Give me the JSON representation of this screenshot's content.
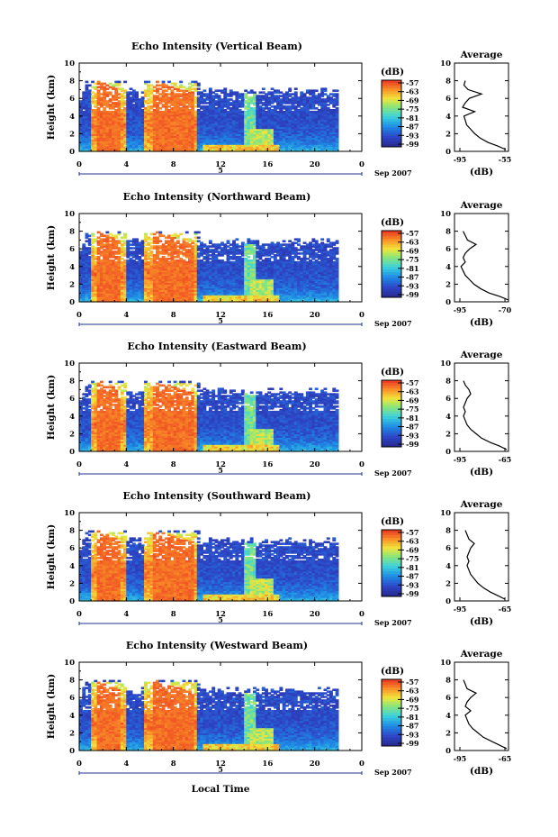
{
  "figure": {
    "xlabel": "Local Time",
    "date_label": "Sep 2007",
    "day_marker": "5",
    "cbar_unit": "(dB)",
    "avg_title": "Average",
    "avg_xlabel": "(dB)"
  },
  "chart_data": [
    {
      "type": "heatmap",
      "title": "Echo Intensity (Vertical Beam)",
      "ylabel": "Height (km)",
      "xlabel": "Local Time",
      "x_ticks": [
        "0",
        "4",
        "8",
        "12",
        "16",
        "20",
        "0"
      ],
      "y_ticks": [
        "0",
        "2",
        "4",
        "6",
        "8",
        "10"
      ],
      "xlim": [
        0,
        24
      ],
      "ylim": [
        0,
        10
      ],
      "colorbar_ticks": [
        "-57",
        "-63",
        "-69",
        "-75",
        "-81",
        "-87",
        "-93",
        "-99"
      ],
      "average": {
        "x_ticks": [
          "-95",
          "-55"
        ],
        "xlim": [
          -95,
          -55
        ],
        "heights": [
          0.2,
          0.6,
          1.0,
          1.5,
          2.0,
          2.5,
          3.0,
          3.5,
          4.0,
          4.5,
          5.0,
          5.5,
          6.0,
          6.5,
          7.0,
          7.5,
          8.0
        ],
        "values": [
          -57,
          -63,
          -70,
          -76,
          -80,
          -83,
          -86,
          -87,
          -88,
          -80,
          -89,
          -87,
          -84,
          -75,
          -85,
          -88,
          -87
        ]
      }
    },
    {
      "type": "heatmap",
      "title": "Echo Intensity (Northward Beam)",
      "ylabel": "Height (km)",
      "xlabel": "Local Time",
      "x_ticks": [
        "0",
        "4",
        "8",
        "12",
        "16",
        "20",
        "0"
      ],
      "y_ticks": [
        "0",
        "2",
        "4",
        "6",
        "8",
        "10"
      ],
      "xlim": [
        0,
        24
      ],
      "ylim": [
        0,
        10
      ],
      "colorbar_ticks": [
        "-57",
        "-63",
        "-69",
        "-75",
        "-81",
        "-87",
        "-93",
        "-99"
      ],
      "average": {
        "x_ticks": [
          "-95",
          "-70"
        ],
        "xlim": [
          -95,
          -70
        ],
        "heights": [
          0.2,
          0.6,
          1.0,
          1.5,
          2.0,
          2.5,
          3.0,
          3.5,
          4.0,
          4.5,
          5.0,
          5.5,
          6.0,
          6.5,
          7.0,
          7.5,
          8.0
        ],
        "values": [
          -70,
          -74,
          -79,
          -83,
          -86,
          -88,
          -90,
          -91,
          -92,
          -90,
          -91,
          -90,
          -88,
          -85,
          -89,
          -90,
          -91
        ]
      }
    },
    {
      "type": "heatmap",
      "title": "Echo Intensity (Eastward Beam)",
      "ylabel": "Height (km)",
      "xlabel": "Local Time",
      "x_ticks": [
        "0",
        "4",
        "8",
        "12",
        "16",
        "20",
        "0"
      ],
      "y_ticks": [
        "0",
        "2",
        "4",
        "6",
        "8",
        "10"
      ],
      "xlim": [
        0,
        24
      ],
      "ylim": [
        0,
        10
      ],
      "colorbar_ticks": [
        "-57",
        "-63",
        "-69",
        "-75",
        "-81",
        "-87",
        "-93",
        "-99"
      ],
      "average": {
        "x_ticks": [
          "-95",
          "-65"
        ],
        "xlim": [
          -95,
          -65
        ],
        "heights": [
          0.2,
          0.6,
          1.0,
          1.5,
          2.0,
          2.5,
          3.0,
          3.5,
          4.0,
          4.5,
          5.0,
          5.5,
          6.0,
          6.5,
          7.0,
          7.5,
          8.0
        ],
        "values": [
          -66,
          -70,
          -75,
          -80,
          -83,
          -86,
          -88,
          -89,
          -90,
          -89,
          -90,
          -89,
          -88,
          -86,
          -87,
          -89,
          -90
        ]
      }
    },
    {
      "type": "heatmap",
      "title": "Echo Intensity (Southward Beam)",
      "ylabel": "Height (km)",
      "xlabel": "Local Time",
      "x_ticks": [
        "0",
        "4",
        "8",
        "12",
        "16",
        "20",
        "0"
      ],
      "y_ticks": [
        "0",
        "2",
        "4",
        "6",
        "8",
        "10"
      ],
      "xlim": [
        0,
        24
      ],
      "ylim": [
        0,
        10
      ],
      "colorbar_ticks": [
        "-57",
        "-63",
        "-69",
        "-75",
        "-81",
        "-87",
        "-93",
        "-99"
      ],
      "average": {
        "x_ticks": [
          "-95",
          "-65"
        ],
        "xlim": [
          -95,
          -65
        ],
        "heights": [
          0.2,
          0.6,
          1.0,
          1.5,
          2.0,
          2.5,
          3.0,
          3.5,
          4.0,
          4.5,
          5.0,
          5.5,
          6.0,
          6.5,
          7.0,
          7.5,
          8.0
        ],
        "values": [
          -67,
          -71,
          -75,
          -79,
          -82,
          -84,
          -86,
          -87,
          -88,
          -87,
          -88,
          -87,
          -86,
          -84,
          -87,
          -88,
          -89
        ]
      }
    },
    {
      "type": "heatmap",
      "title": "Echo Intensity (Westward Beam)",
      "ylabel": "Height (km)",
      "xlabel": "Local Time",
      "x_ticks": [
        "0",
        "4",
        "8",
        "12",
        "16",
        "20",
        "0"
      ],
      "y_ticks": [
        "0",
        "2",
        "4",
        "6",
        "8",
        "10"
      ],
      "xlim": [
        0,
        24
      ],
      "ylim": [
        0,
        10
      ],
      "colorbar_ticks": [
        "-57",
        "-63",
        "-69",
        "-75",
        "-81",
        "-87",
        "-93",
        "-99"
      ],
      "average": {
        "x_ticks": [
          "-95",
          "-65"
        ],
        "xlim": [
          -95,
          -65
        ],
        "heights": [
          0.2,
          0.6,
          1.0,
          1.5,
          2.0,
          2.5,
          3.0,
          3.5,
          4.0,
          4.5,
          5.0,
          5.5,
          6.0,
          6.5,
          7.0,
          7.5,
          8.0
        ],
        "values": [
          -66,
          -70,
          -74,
          -79,
          -82,
          -85,
          -87,
          -88,
          -89,
          -86,
          -89,
          -88,
          -86,
          -83,
          -88,
          -89,
          -90
        ]
      }
    }
  ]
}
